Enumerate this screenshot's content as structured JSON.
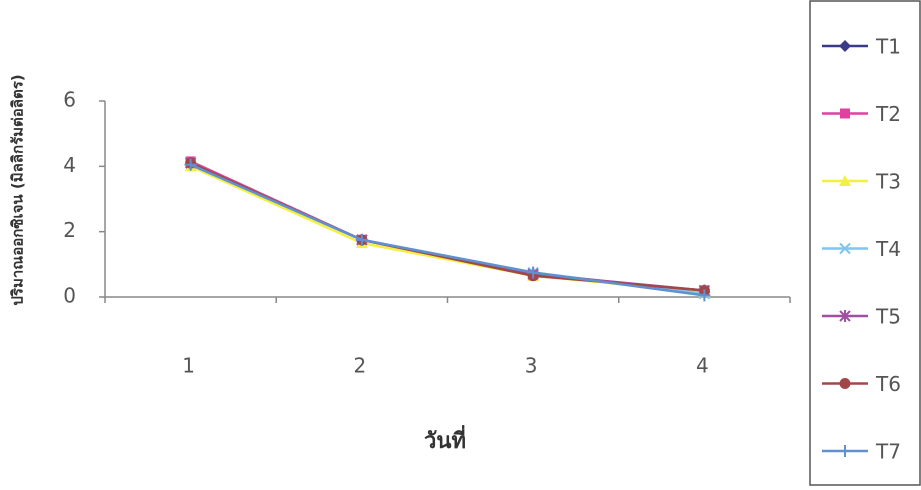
{
  "chart_data": {
    "type": "line",
    "y_label": "ปริมาณออกซิเจน (มิลลิกรัมต่อลิตร)",
    "x_label": "วันที่",
    "categories": [
      "1",
      "2",
      "3",
      "4"
    ],
    "ylim": [
      0,
      6
    ],
    "yticks": [
      0,
      2,
      4,
      6
    ],
    "grid": false,
    "legend": "right",
    "series": [
      {
        "name": "T1",
        "color": "#3a3a8a",
        "marker": "diamond",
        "values": [
          4.05,
          1.75,
          0.7,
          0.15
        ]
      },
      {
        "name": "T2",
        "color": "#e040a0",
        "marker": "square",
        "values": [
          4.15,
          1.75,
          0.65,
          0.2
        ]
      },
      {
        "name": "T3",
        "color": "#f2f040",
        "marker": "triangle",
        "values": [
          4.0,
          1.65,
          0.65,
          0.15
        ]
      },
      {
        "name": "T4",
        "color": "#80c4f0",
        "marker": "x",
        "values": [
          4.1,
          1.75,
          0.75,
          0.1
        ]
      },
      {
        "name": "T5",
        "color": "#a050a0",
        "marker": "star",
        "values": [
          4.1,
          1.75,
          0.7,
          0.2
        ]
      },
      {
        "name": "T6",
        "color": "#a04848",
        "marker": "circle",
        "values": [
          4.1,
          1.75,
          0.65,
          0.2
        ]
      },
      {
        "name": "T7",
        "color": "#6090d0",
        "marker": "plus",
        "values": [
          4.05,
          1.75,
          0.75,
          0.05
        ]
      }
    ]
  }
}
